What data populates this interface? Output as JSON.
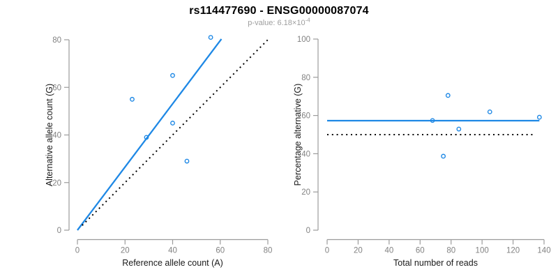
{
  "header": {
    "title": "rs114477690 - ENSG00000087074",
    "p_value_label": "p-value: ",
    "p_value_base": "6.18×10",
    "p_value_exponent": "-4"
  },
  "colors": {
    "accent_blue": "#1E88E5",
    "reference_black": "#000000",
    "axis_line": "#9B9B9B",
    "tick_label": "#828282",
    "axis_title": "#1A1A1A",
    "title": "#000000",
    "subtitle": "#9E9E9E",
    "background": "#FFFFFF",
    "marker_stroke": "#1E88E5"
  },
  "chart_data": [
    {
      "id": "allele-counts",
      "type": "scatter",
      "xlabel": "Reference allele count (A)",
      "ylabel": "Alternative allele count (G)",
      "xlim": [
        0,
        80
      ],
      "ylim": [
        0,
        80
      ],
      "xticks": [
        0,
        20,
        40,
        60,
        80
      ],
      "yticks": [
        0,
        20,
        40,
        60,
        80
      ],
      "grid": false,
      "legend": "none",
      "marker": {
        "shape": "open-circle",
        "color": "accent_blue"
      },
      "points": [
        {
          "x": 23,
          "y": 55
        },
        {
          "x": 29,
          "y": 39
        },
        {
          "x": 40,
          "y": 45
        },
        {
          "x": 40,
          "y": 65
        },
        {
          "x": 46,
          "y": 29
        },
        {
          "x": 56,
          "y": 81
        }
      ],
      "lines": [
        {
          "name": "fit-line",
          "x1": 0,
          "y1": 0,
          "x2": 60.5,
          "y2": 80.3,
          "style": "solid",
          "color": "accent_blue"
        },
        {
          "name": "identity-line",
          "x1": 2,
          "y1": 2,
          "x2": 80.5,
          "y2": 80.5,
          "style": "dotted",
          "color": "reference_black"
        }
      ]
    },
    {
      "id": "percentage-vs-reads",
      "type": "scatter",
      "xlabel": "Total number of reads",
      "ylabel": "Percentage alternative (G)",
      "xlim": [
        0,
        140
      ],
      "ylim": [
        0,
        100
      ],
      "xticks": [
        0,
        20,
        40,
        60,
        80,
        100,
        120,
        140
      ],
      "yticks": [
        0,
        20,
        40,
        60,
        80,
        100
      ],
      "grid": false,
      "legend": "none",
      "marker": {
        "shape": "open-circle",
        "color": "accent_blue"
      },
      "points": [
        {
          "x": 68,
          "y": 57.4
        },
        {
          "x": 75,
          "y": 38.7
        },
        {
          "x": 78,
          "y": 70.5
        },
        {
          "x": 85,
          "y": 52.9
        },
        {
          "x": 105,
          "y": 61.9
        },
        {
          "x": 137,
          "y": 59.1
        }
      ],
      "lines": [
        {
          "name": "mean-line",
          "x1": 0,
          "y1": 57.3,
          "x2": 137,
          "y2": 57.3,
          "style": "solid",
          "color": "accent_blue"
        },
        {
          "name": "reference-line",
          "x1": 0,
          "y1": 50,
          "x2": 134,
          "y2": 50,
          "style": "dotted",
          "color": "reference_black"
        }
      ]
    }
  ]
}
